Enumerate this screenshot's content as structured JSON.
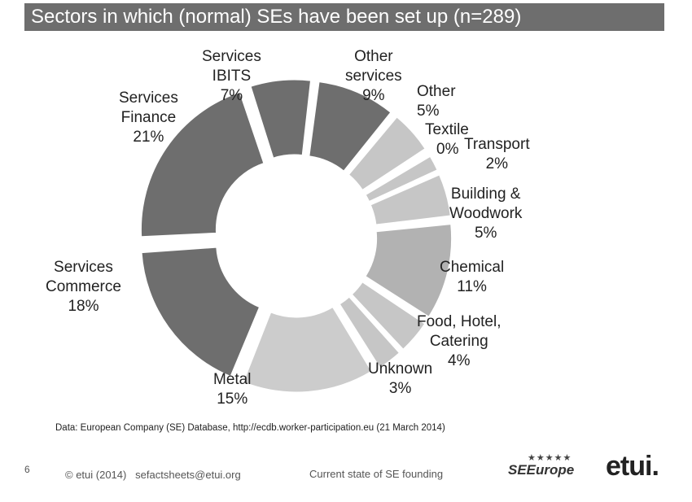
{
  "title": "Sectors in which (normal) SEs have been set up (n=289)",
  "chart_data": {
    "type": "pie",
    "title": "Sectors in which (normal) SEs have been set up (n=289)",
    "slices": [
      {
        "label": [
          "Other",
          "services"
        ],
        "value_label": "9%",
        "value": 9,
        "color": "#6e6e6e"
      },
      {
        "label": [
          "Other"
        ],
        "value_label": "5%",
        "value": 5,
        "color": "#c6c6c6"
      },
      {
        "label": [
          "Textile"
        ],
        "value_label": "0%",
        "value": 0.4,
        "color": "#c6c6c6"
      },
      {
        "label": [
          "Transport"
        ],
        "value_label": "2%",
        "value": 2,
        "color": "#c6c6c6"
      },
      {
        "label": [
          "Building &",
          "Woodwork"
        ],
        "value_label": "5%",
        "value": 5,
        "color": "#c6c6c6"
      },
      {
        "label": [
          "Chemical"
        ],
        "value_label": "11%",
        "value": 11,
        "color": "#b2b2b2"
      },
      {
        "label": [
          "Food, Hotel,",
          "Catering"
        ],
        "value_label": "4%",
        "value": 4,
        "color": "#c6c6c6"
      },
      {
        "label": [
          "Unknown"
        ],
        "value_label": "3%",
        "value": 3,
        "color": "#c6c6c6"
      },
      {
        "label": [
          "Metal"
        ],
        "value_label": "15%",
        "value": 15,
        "color": "#cccccc"
      },
      {
        "label": [
          "Services",
          "Commerce"
        ],
        "value_label": "18%",
        "value": 18,
        "color": "#6e6e6e"
      },
      {
        "label": [
          "Services",
          "Finance"
        ],
        "value_label": "21%",
        "value": 21,
        "color": "#6e6e6e"
      },
      {
        "label": [
          "Services",
          "IBITS"
        ],
        "value_label": "7%",
        "value": 7,
        "color": "#6e6e6e"
      }
    ]
  },
  "source": "Data: European Company (SE) Database, http://ecdb.worker-participation.eu (21 March 2014)",
  "footer": {
    "page_number": "6",
    "copyright": "© etui (2014)   sefactsheets@etui.org",
    "subject": "Current state of SE founding",
    "brand_stars": "* * * * *\n*          *",
    "brand_name": "SEEurope",
    "logo": "etui."
  }
}
